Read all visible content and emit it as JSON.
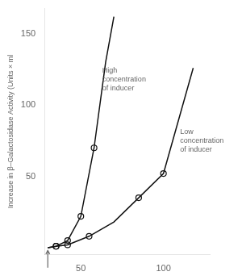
{
  "chart_data": {
    "type": "line",
    "ylabel": "Increase in β–Galactosidase Activity (Units × ml",
    "xlim": [
      28,
      128
    ],
    "ylim": [
      -5,
      168
    ],
    "xticks": [
      50,
      100
    ],
    "yticks": [
      50,
      100,
      150
    ],
    "grid": false,
    "series": [
      {
        "x": [
          30,
          35,
          42,
          50,
          58,
          65,
          70
        ],
        "values": [
          0,
          1,
          5,
          22,
          70,
          130,
          162
        ],
        "color": "#111111"
      },
      {
        "type": "scatter",
        "marker": "o",
        "x": [
          35,
          42,
          50,
          58
        ],
        "values": [
          1,
          5,
          22,
          70
        ],
        "color": "#111111"
      },
      {
        "x": [
          30,
          35,
          42,
          55,
          70,
          85,
          100,
          118
        ],
        "values": [
          0,
          1,
          2,
          8,
          18,
          35,
          52,
          126
        ],
        "color": "#111111"
      },
      {
        "type": "scatter",
        "marker": "o",
        "x": [
          35,
          42,
          55,
          85,
          100
        ],
        "values": [
          1,
          2,
          8,
          35,
          52
        ],
        "color": "#111111"
      }
    ],
    "annotations": [
      {
        "text": "High\nconcentration\nof inducer",
        "x": 63,
        "y": 118
      },
      {
        "text": "Low\nconcentration\nof inducer",
        "x": 110,
        "y": 75
      },
      {
        "x": 30,
        "y": -2,
        "arrow_from": [
          30,
          -14
        ]
      }
    ]
  }
}
